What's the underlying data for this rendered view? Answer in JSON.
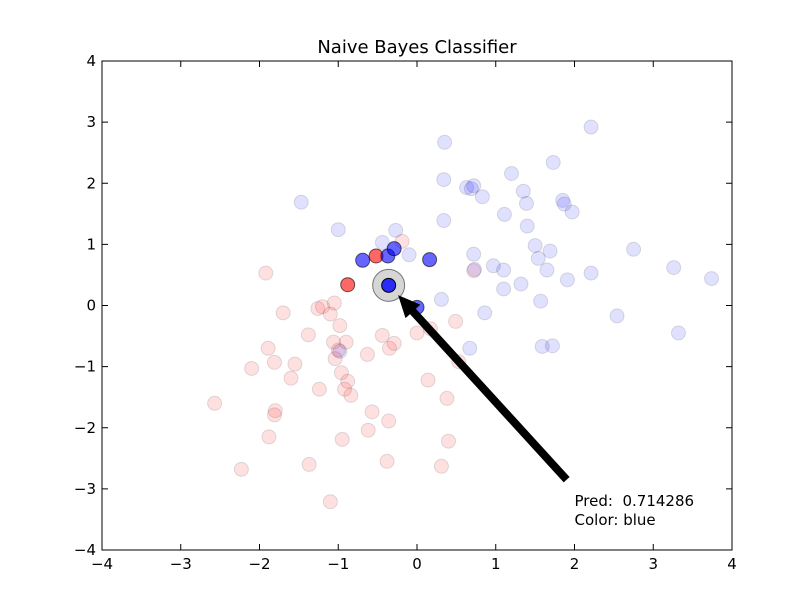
{
  "chart_data": {
    "type": "scatter",
    "title": "Naive Bayes Classifier",
    "xlabel": "",
    "ylabel": "",
    "xlim": [
      -4,
      4
    ],
    "ylim": [
      -4,
      4
    ],
    "xticks": [
      -4,
      -3,
      -2,
      -1,
      0,
      1,
      2,
      3,
      4
    ],
    "yticks": [
      -4,
      -3,
      -2,
      -1,
      0,
      1,
      2,
      3,
      4
    ],
    "grid": false,
    "colors": {
      "red": "#ff0000",
      "blue": "#0000ff",
      "query": "#c0c0c0",
      "arrow": "#000000"
    },
    "series": [
      {
        "role": "training-red",
        "alpha": 0.12,
        "points": [
          [
            -2.57,
            -1.6
          ],
          [
            -2.23,
            -2.68
          ],
          [
            -2.1,
            -1.03
          ],
          [
            -1.92,
            0.53
          ],
          [
            -1.89,
            -0.7
          ],
          [
            -1.88,
            -2.15
          ],
          [
            -1.81,
            -0.93
          ],
          [
            -1.8,
            -1.72
          ],
          [
            -1.81,
            -1.79
          ],
          [
            -1.7,
            -0.12
          ],
          [
            -1.6,
            -1.19
          ],
          [
            -1.55,
            -0.96
          ],
          [
            -1.38,
            -0.48
          ],
          [
            -1.37,
            -2.6
          ],
          [
            -1.26,
            -0.05
          ],
          [
            -1.24,
            -1.37
          ],
          [
            -1.2,
            -0.02
          ],
          [
            -1.1,
            -0.14
          ],
          [
            -1.1,
            -3.21
          ],
          [
            -1.06,
            -0.6
          ],
          [
            -1.05,
            0.04
          ],
          [
            -1.04,
            -0.87
          ],
          [
            -1.0,
            -0.73
          ],
          [
            -0.98,
            -0.33
          ],
          [
            -0.96,
            -1.1
          ],
          [
            -0.95,
            -2.19
          ],
          [
            -0.92,
            -1.37
          ],
          [
            -0.9,
            -0.6
          ],
          [
            -0.88,
            -1.24
          ],
          [
            -0.84,
            -1.47
          ],
          [
            -0.63,
            -0.8
          ],
          [
            -0.62,
            -2.04
          ],
          [
            -0.57,
            -1.74
          ],
          [
            -0.44,
            -0.49
          ],
          [
            -0.38,
            -2.55
          ],
          [
            -0.36,
            -1.89
          ],
          [
            -0.35,
            -0.7
          ],
          [
            -0.29,
            -0.62
          ],
          [
            -0.19,
            1.05
          ],
          [
            0.0,
            -0.45
          ],
          [
            0.14,
            -1.22
          ],
          [
            0.17,
            -0.38
          ],
          [
            0.31,
            -2.63
          ],
          [
            0.38,
            -1.52
          ],
          [
            0.4,
            -2.22
          ],
          [
            0.49,
            -0.26
          ],
          [
            0.53,
            -0.92
          ],
          [
            0.72,
            0.57
          ]
        ]
      },
      {
        "role": "training-blue",
        "alpha": 0.12,
        "points": [
          [
            -1.47,
            1.69
          ],
          [
            -1.0,
            1.24
          ],
          [
            -0.98,
            -0.75
          ],
          [
            -0.44,
            1.03
          ],
          [
            -0.27,
            1.23
          ],
          [
            -0.1,
            0.83
          ],
          [
            0.31,
            0.1
          ],
          [
            0.34,
            1.39
          ],
          [
            0.34,
            2.06
          ],
          [
            0.35,
            2.67
          ],
          [
            0.63,
            1.93
          ],
          [
            0.67,
            -0.7
          ],
          [
            0.69,
            1.91
          ],
          [
            0.72,
            1.96
          ],
          [
            0.72,
            0.84
          ],
          [
            0.73,
            0.59
          ],
          [
            0.83,
            1.78
          ],
          [
            0.86,
            -0.12
          ],
          [
            0.97,
            0.65
          ],
          [
            1.1,
            0.27
          ],
          [
            1.1,
            0.58
          ],
          [
            1.11,
            1.49
          ],
          [
            1.2,
            2.16
          ],
          [
            1.32,
            0.35
          ],
          [
            1.35,
            1.87
          ],
          [
            1.39,
            1.67
          ],
          [
            1.4,
            1.3
          ],
          [
            1.5,
            0.98
          ],
          [
            1.54,
            0.77
          ],
          [
            1.57,
            0.07
          ],
          [
            1.59,
            -0.67
          ],
          [
            1.65,
            0.58
          ],
          [
            1.69,
            0.89
          ],
          [
            1.72,
            -0.66
          ],
          [
            1.73,
            2.34
          ],
          [
            1.85,
            1.72
          ],
          [
            1.87,
            1.66
          ],
          [
            1.91,
            0.42
          ],
          [
            1.97,
            1.53
          ],
          [
            2.21,
            2.92
          ],
          [
            2.21,
            0.53
          ],
          [
            2.54,
            -0.17
          ],
          [
            2.75,
            0.92
          ],
          [
            3.26,
            0.62
          ],
          [
            3.32,
            -0.45
          ],
          [
            3.74,
            0.44
          ]
        ]
      },
      {
        "role": "neighbors-red",
        "alpha": 0.6,
        "points": [
          [
            -0.88,
            0.34
          ],
          [
            -0.52,
            0.81
          ]
        ]
      },
      {
        "role": "neighbors-blue",
        "alpha": 0.6,
        "points": [
          [
            -0.69,
            0.74
          ],
          [
            -0.37,
            0.81
          ],
          [
            -0.29,
            0.93
          ],
          [
            0.16,
            0.75
          ],
          [
            0.0,
            -0.03
          ]
        ]
      }
    ],
    "query_point": {
      "x": -0.36,
      "y": 0.33
    },
    "annotation": {
      "line1": "Pred:  0.714286",
      "line2": "Color: blue",
      "x": 2.0,
      "y": -3.3,
      "arrow_from": [
        1.9,
        -2.85
      ],
      "arrow_to": [
        -0.24,
        0.17
      ]
    }
  }
}
